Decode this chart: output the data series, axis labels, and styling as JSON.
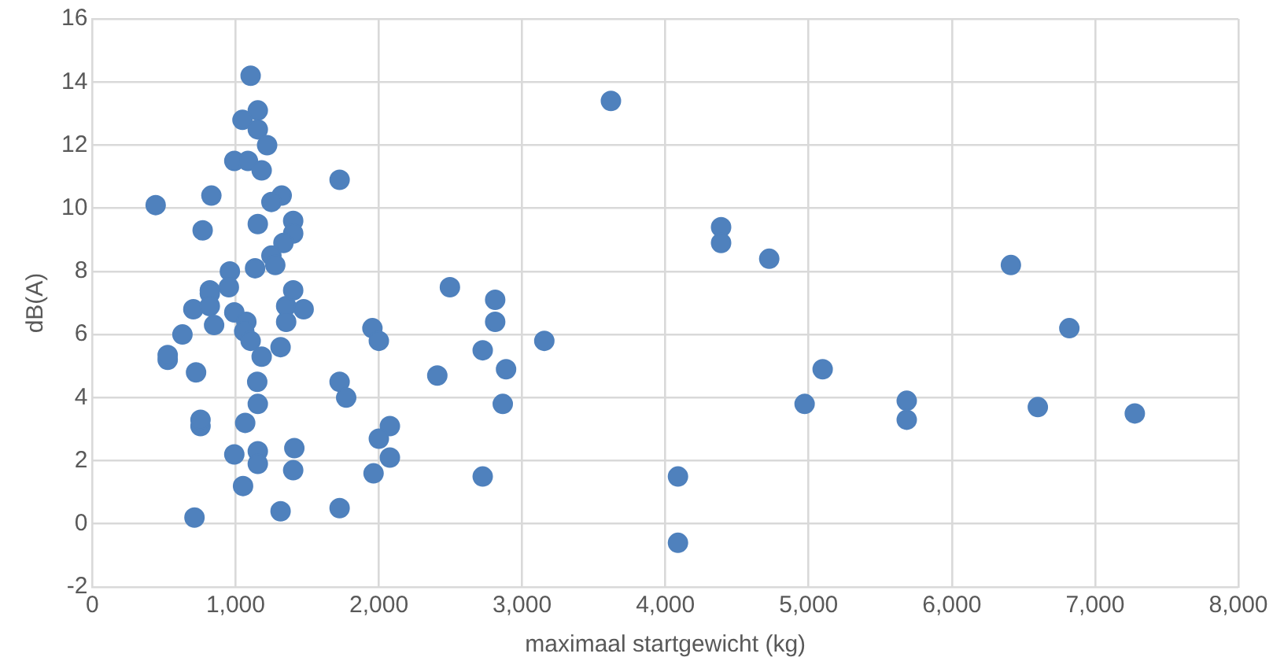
{
  "chart_data": {
    "type": "scatter",
    "xlabel": "maximaal startgewicht (kg)",
    "ylabel": "dB(A)",
    "x": [
      1105,
      1155,
      1048,
      1155,
      1220,
      991,
      1086,
      1182,
      1726,
      831,
      1322,
      1250,
      442,
      1402,
      770,
      1155,
      1402,
      1334,
      1250,
      960,
      1136,
      1277,
      820,
      953,
      820,
      705,
      820,
      991,
      1075,
      1353,
      1353,
      1475,
      1402,
      850,
      629,
      1060,
      1105,
      526,
      526,
      1314,
      1182,
      1955,
      2000,
      724,
      1151,
      1726,
      1772,
      1155,
      755,
      755,
      1067,
      2077,
      2000,
      2077,
      991,
      1155,
      1155,
      1410,
      1402,
      1963,
      1052,
      713,
      1314,
      1726,
      3620,
      4389,
      4389,
      4725,
      2496,
      2812,
      2812,
      2725,
      3155,
      2888,
      2408,
      2865,
      2725,
      4088,
      4088,
      4972,
      6412,
      6820,
      5098,
      5685,
      5685,
      6600,
      7277
    ],
    "values": [
      14.2,
      13.1,
      12.8,
      12.5,
      12.0,
      11.5,
      11.5,
      11.2,
      10.9,
      10.4,
      10.4,
      10.2,
      10.1,
      9.6,
      9.3,
      9.5,
      9.2,
      8.9,
      8.5,
      8.0,
      8.1,
      8.2,
      7.4,
      7.5,
      7.3,
      6.8,
      6.9,
      6.7,
      6.4,
      6.9,
      6.4,
      6.8,
      7.4,
      6.3,
      6.0,
      6.1,
      5.8,
      5.2,
      5.35,
      5.6,
      5.3,
      6.2,
      5.8,
      4.8,
      4.5,
      4.5,
      4.0,
      3.8,
      3.1,
      3.3,
      3.2,
      3.1,
      2.7,
      2.1,
      2.2,
      2.3,
      1.9,
      2.4,
      1.7,
      1.6,
      1.2,
      0.2,
      0.4,
      0.5,
      13.4,
      9.4,
      8.9,
      8.4,
      7.5,
      7.1,
      6.4,
      5.5,
      5.8,
      4.9,
      4.7,
      3.8,
      1.5,
      1.5,
      -0.6,
      3.8,
      8.2,
      6.2,
      4.9,
      3.9,
      3.3,
      3.7,
      3.5
    ],
    "color": "#4f81bd",
    "marker": "circle",
    "grid": true,
    "xlim": [
      0,
      8000
    ],
    "xticks": [
      0,
      {
        "value": 1000,
        "label": "1,000"
      },
      {
        "value": 2000,
        "label": "2,000"
      },
      {
        "value": 3000,
        "label": "3,000"
      },
      {
        "value": 4000,
        "label": "4,000"
      },
      {
        "value": 5000,
        "label": "5,000"
      },
      {
        "value": 6000,
        "label": "6,000"
      },
      {
        "value": 7000,
        "label": "7,000"
      },
      {
        "value": 8000,
        "label": "8,000"
      }
    ],
    "ylim": [
      -2,
      16
    ],
    "yticks": [
      -2,
      0,
      2,
      4,
      6,
      8,
      10,
      12,
      14,
      16
    ]
  }
}
